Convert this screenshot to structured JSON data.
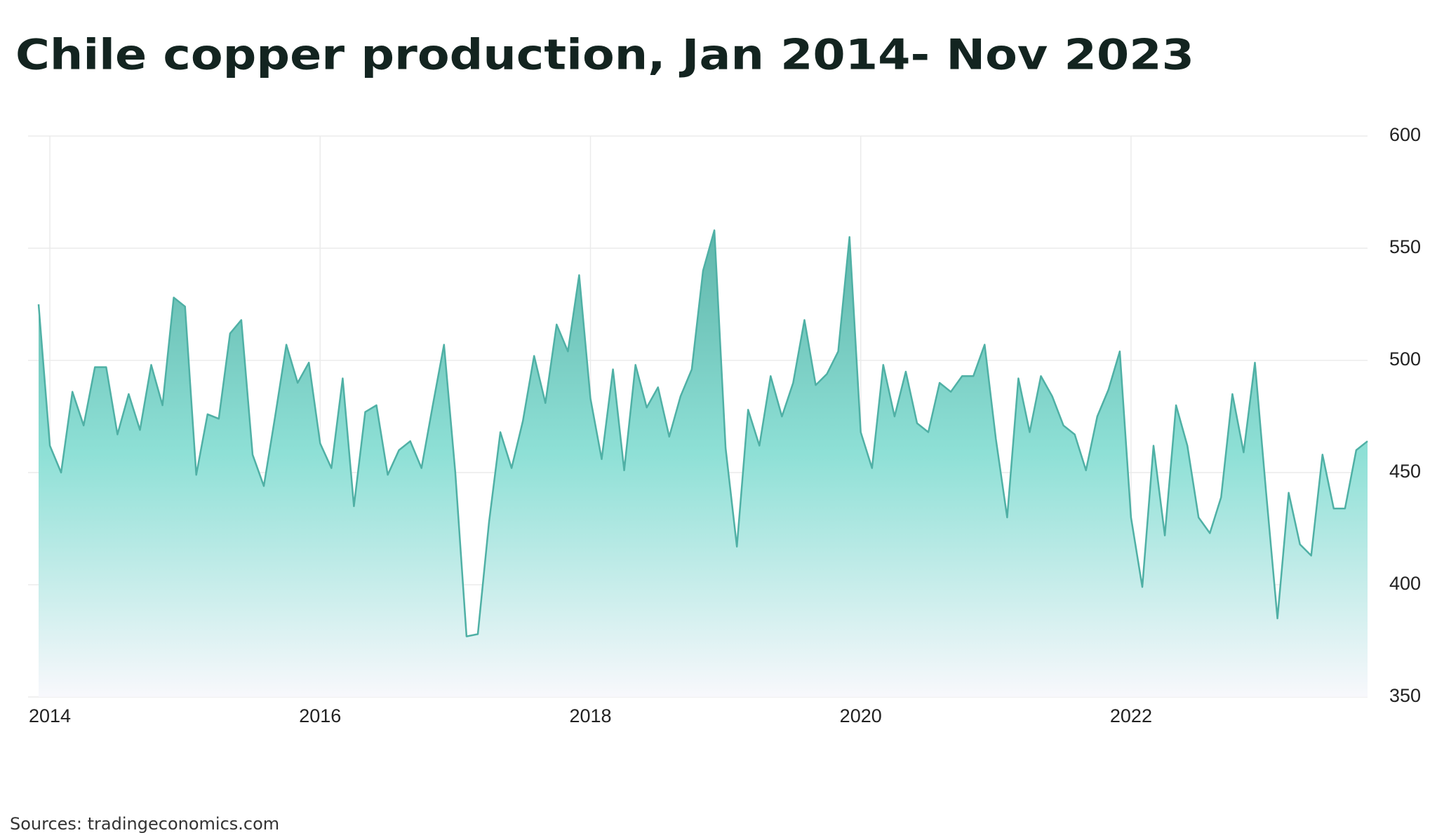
{
  "chart_data": {
    "type": "area",
    "title": "Chile copper production, Jan 2014- Nov 2023",
    "source": "Sources: tradingeconomics.com",
    "categories": [
      null,
      "2014",
      null,
      null,
      null,
      null,
      null,
      null,
      null,
      null,
      null,
      null,
      null,
      null,
      null,
      null,
      null,
      null,
      null,
      null,
      null,
      null,
      null,
      null,
      null,
      "2016",
      null,
      null,
      null,
      null,
      null,
      null,
      null,
      null,
      null,
      null,
      null,
      null,
      null,
      null,
      null,
      null,
      null,
      null,
      null,
      null,
      null,
      null,
      null,
      "2018",
      null,
      null,
      null,
      null,
      null,
      null,
      null,
      null,
      null,
      null,
      null,
      null,
      null,
      null,
      null,
      null,
      null,
      null,
      null,
      null,
      null,
      null,
      null,
      "2020",
      null,
      null,
      null,
      null,
      null,
      null,
      null,
      null,
      null,
      null,
      null,
      null,
      null,
      null,
      null,
      null,
      null,
      null,
      null,
      null,
      null,
      null,
      null,
      "2022",
      null,
      null,
      null,
      null,
      null,
      null,
      null,
      null,
      null,
      null,
      null,
      null,
      null,
      null,
      null,
      null,
      null,
      null,
      null,
      null,
      null
    ],
    "values": [
      525,
      462,
      450,
      486,
      471,
      497,
      497,
      467,
      485,
      469,
      498,
      480,
      528,
      524,
      449,
      476,
      474,
      512,
      518,
      458,
      444,
      475,
      507,
      490,
      499,
      463,
      452,
      492,
      435,
      477,
      480,
      449,
      460,
      464,
      452,
      480,
      507,
      450,
      377,
      378,
      428,
      468,
      452,
      473,
      502,
      481,
      516,
      504,
      538,
      483,
      456,
      496,
      451,
      498,
      479,
      488,
      466,
      484,
      496,
      540,
      558,
      461,
      417,
      478,
      462,
      493,
      475,
      490,
      518,
      489,
      494,
      504,
      555,
      468,
      452,
      498,
      475,
      495,
      472,
      468,
      490,
      486,
      493,
      493,
      507,
      465,
      430,
      492,
      468,
      493,
      484,
      471,
      467,
      451,
      475,
      487,
      504,
      430,
      399,
      462,
      422,
      480,
      462,
      430,
      423,
      439,
      485,
      459,
      499,
      441,
      385,
      441,
      418,
      413,
      458,
      434,
      434,
      460,
      464
    ],
    "color": "#4fb0a5",
    "ylim": [
      350,
      600
    ],
    "yticks": [
      350,
      400,
      450,
      500,
      550,
      600
    ],
    "grid": true
  }
}
